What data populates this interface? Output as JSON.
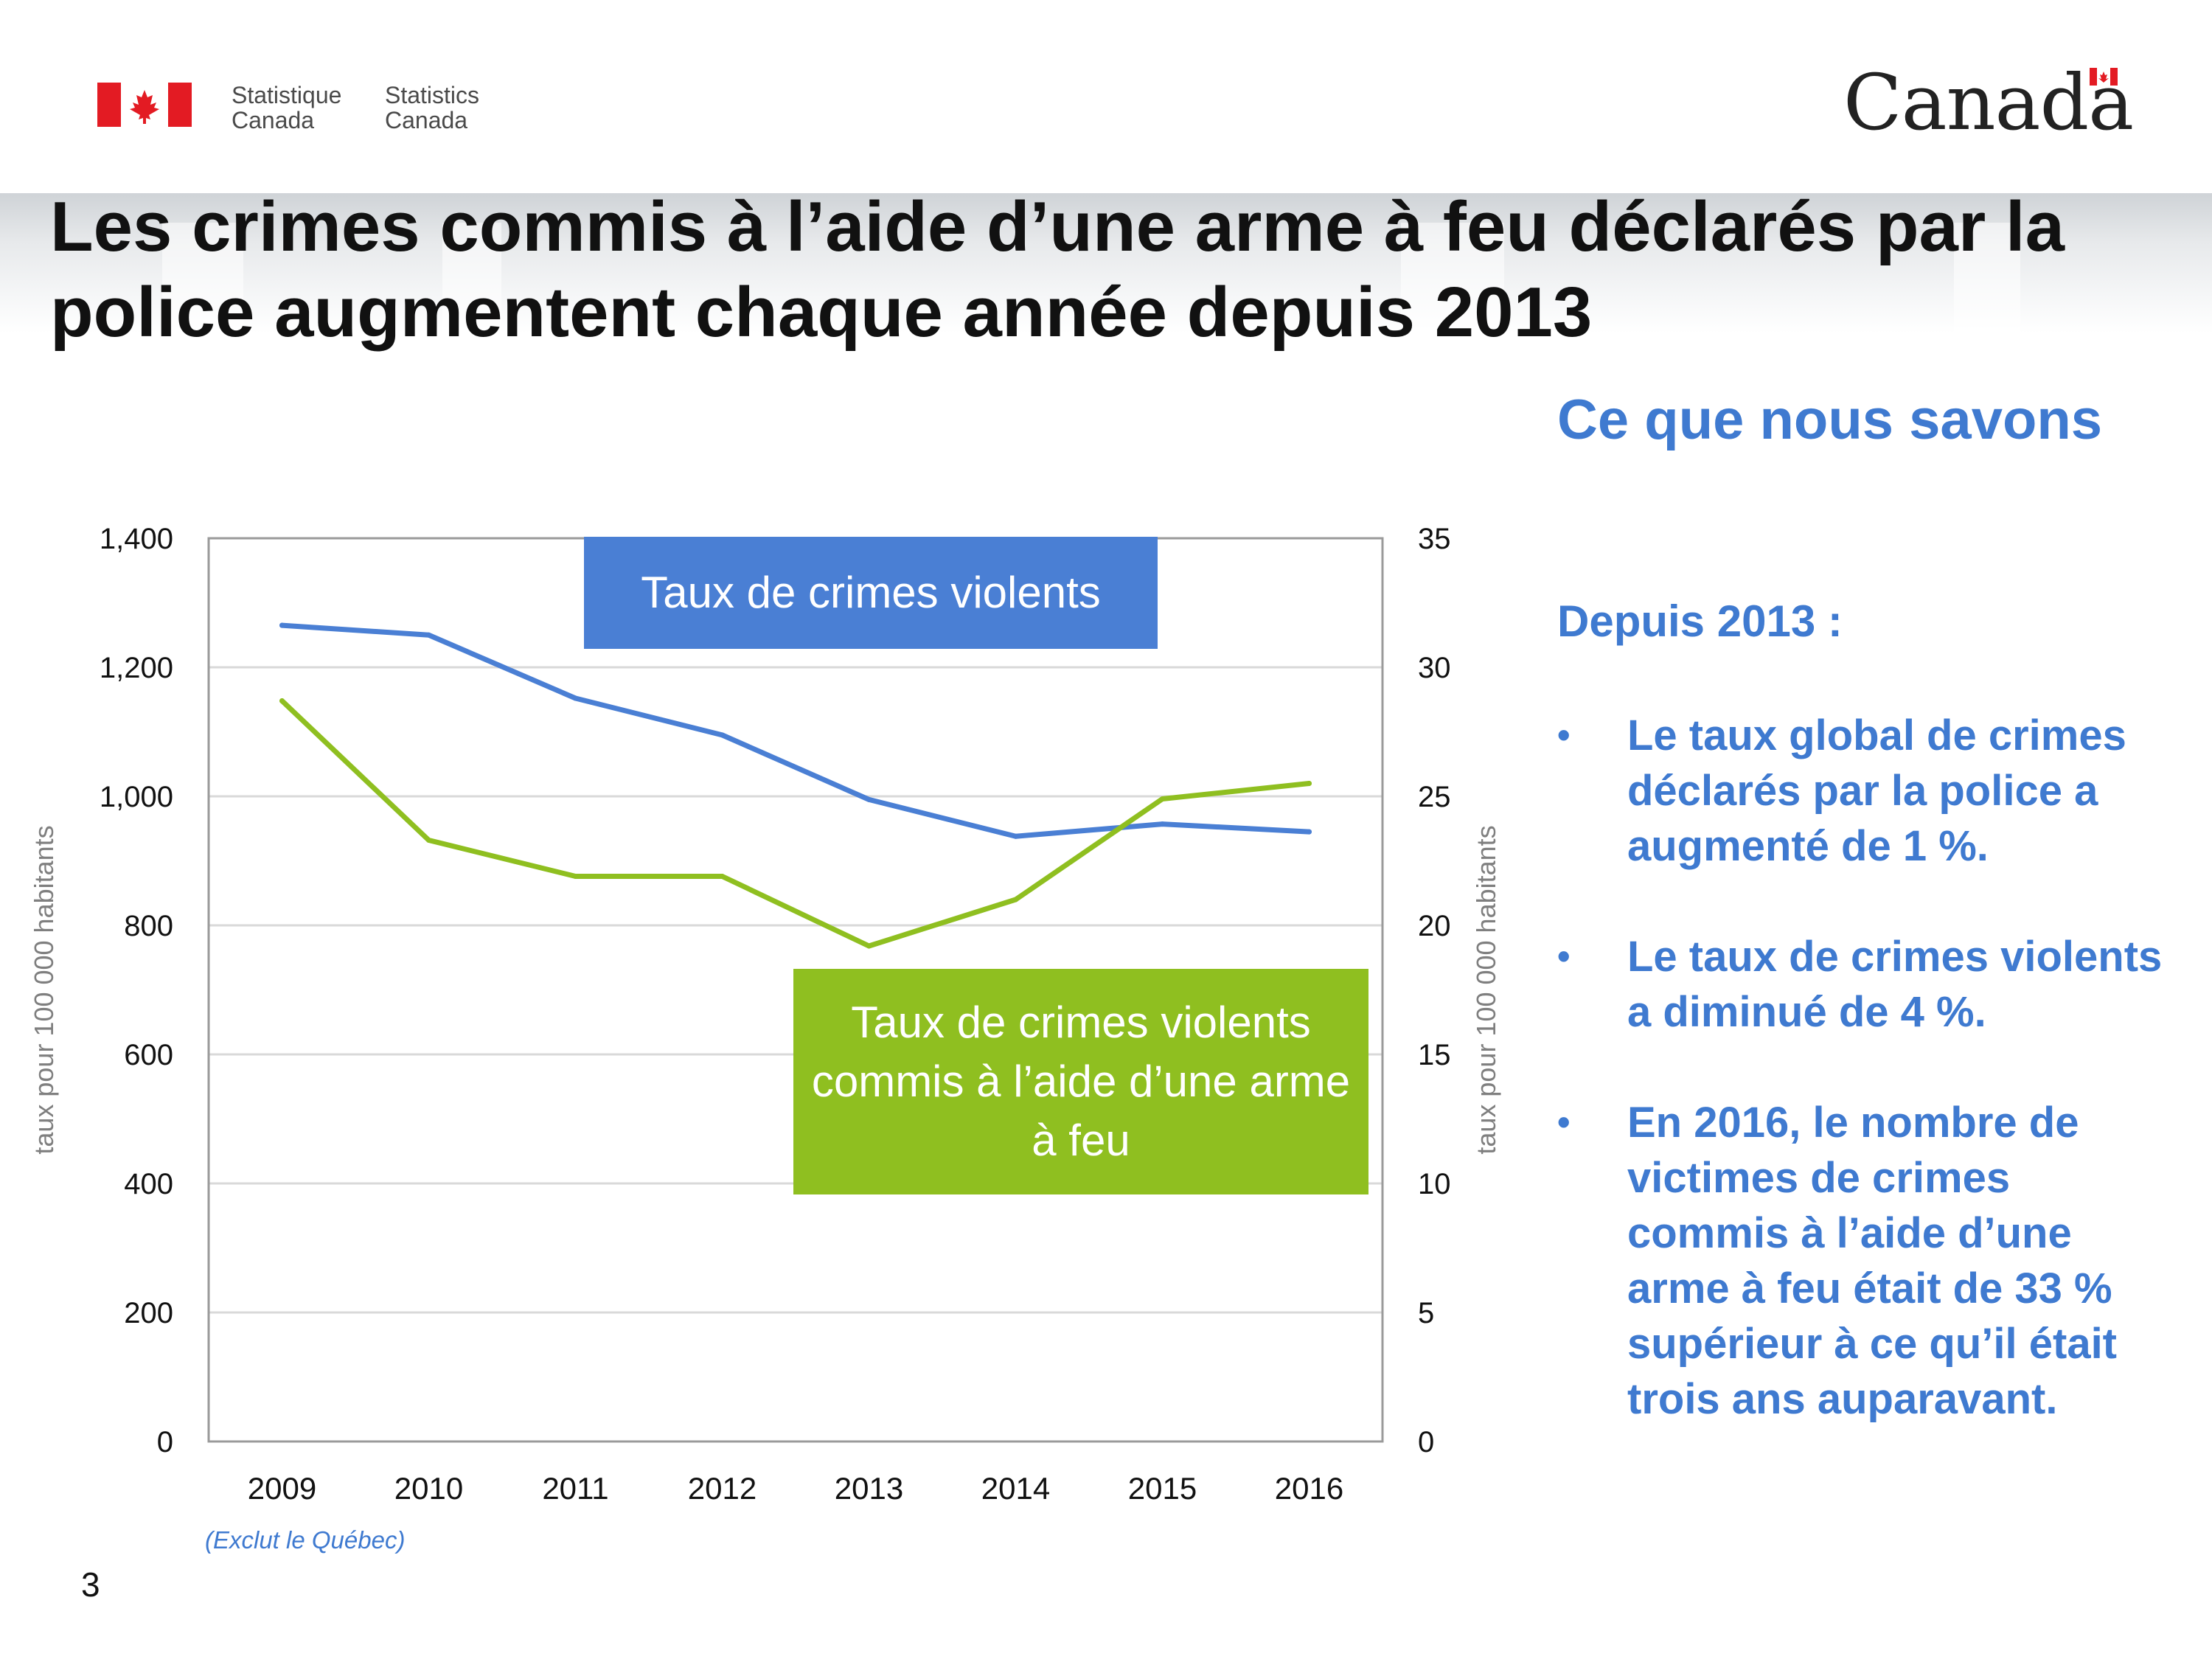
{
  "header": {
    "agency_fr": "Statistique\nCanada",
    "agency_en": "Statistics\nCanada",
    "wordmark": "Canada"
  },
  "title": "Les crimes commis à l’aide d’une arme à feu déclarés par la police augmentent chaque année depuis 2013",
  "side": {
    "heading": "Ce que nous savons",
    "subheading": "Depuis 2013 :",
    "bullets": [
      "Le taux global de crimes déclarés par la police a augmenté de 1 %.",
      "Le taux de crimes violents a diminué de 4 %.",
      "En 2016, le nombre de victimes de crimes commis à l’aide d’une arme à feu était de 33 % supérieur à ce qu’il était trois ans auparavant."
    ],
    "bullet_glyph": "•"
  },
  "footnote": "(Exclut le Québec)",
  "page_number": "3",
  "colors": {
    "blue_series": "#4a7fd4",
    "green_series": "#8fbf20",
    "text_accent": "#3f7ad0"
  },
  "chart_data": {
    "type": "line",
    "x": [
      "2009",
      "2010",
      "2011",
      "2012",
      "2013",
      "2014",
      "2015",
      "2016"
    ],
    "series": [
      {
        "name": "Taux de crimes violents",
        "axis": "left",
        "color": "#4a7fd4",
        "values": [
          1265,
          1250,
          1152,
          1095,
          995,
          938,
          957,
          945
        ]
      },
      {
        "name": "Taux de crimes violents commis à l’aide d’une arme à feu",
        "axis": "right",
        "color": "#8fbf20",
        "values": [
          28.7,
          23.3,
          21.9,
          21.9,
          19.2,
          21.0,
          24.9,
          25.5
        ]
      }
    ],
    "y_left": {
      "label": "taux pour 100 000 habitants",
      "ylim": [
        0,
        1400
      ],
      "ticks": [
        "0",
        "200",
        "400",
        "600",
        "800",
        "1,000",
        "1,200",
        "1,400"
      ]
    },
    "y_right": {
      "label": "taux pour 100 000 habitants",
      "ylim": [
        0,
        35
      ],
      "ticks": [
        "0",
        "5",
        "10",
        "15",
        "20",
        "25",
        "30",
        "35"
      ]
    },
    "grid": true
  }
}
